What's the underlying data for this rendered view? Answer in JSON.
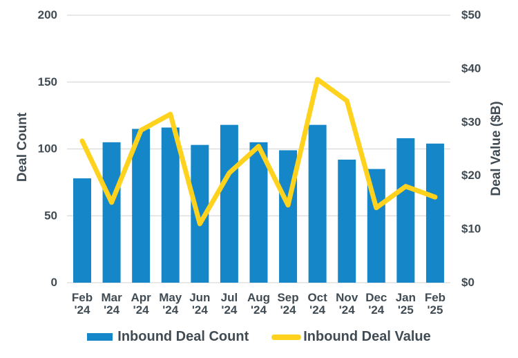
{
  "colors": {
    "bar_blue": "#1587C9",
    "line_yellow": "#FFD21E",
    "text": "#404B53",
    "grid": "#D9D9D9",
    "background": "#FFFFFF"
  },
  "chart_data": {
    "type": "combo",
    "categories": [
      "Feb '24",
      "Mar '24",
      "Apr '24",
      "May '24",
      "Jun '24",
      "Jul '24",
      "Aug '24",
      "Sep '24",
      "Oct '24",
      "Nov '24",
      "Dec '24",
      "Jan '25",
      "Feb '25"
    ],
    "series": [
      {
        "name": "Inbound Deal Count",
        "type": "bar",
        "axis": "left",
        "color": "#1587C9",
        "values": [
          78,
          105,
          115,
          116,
          103,
          118,
          105,
          99,
          118,
          92,
          85,
          108,
          104
        ]
      },
      {
        "name": "Inbound Deal Value",
        "type": "line",
        "axis": "right",
        "color": "#FFD21E",
        "values": [
          26.5,
          15,
          28.5,
          31.5,
          11,
          20.5,
          25.5,
          14.5,
          38,
          34,
          14,
          18,
          16
        ]
      }
    ],
    "left_axis": {
      "label": "Deal Count",
      "min": 0,
      "max": 200,
      "ticks": [
        0,
        50,
        100,
        150,
        200
      ],
      "tick_labels": [
        "0",
        "50",
        "100",
        "150",
        "200"
      ]
    },
    "right_axis": {
      "label": "Deal Value ($B)",
      "min": 0,
      "max": 50,
      "ticks": [
        0,
        10,
        20,
        30,
        40,
        50
      ],
      "tick_labels": [
        "$0",
        "$10",
        "$20",
        "$30",
        "$40",
        "$50"
      ]
    },
    "grid": "horizontal",
    "legend_position": "bottom"
  }
}
